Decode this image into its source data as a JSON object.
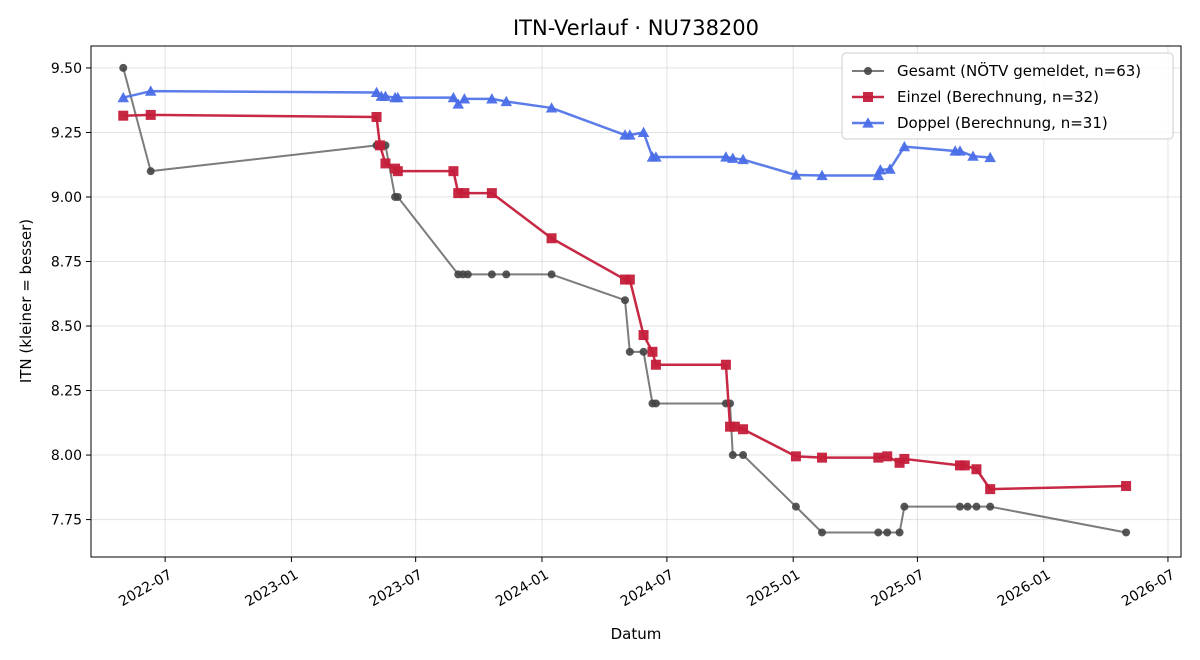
{
  "chart_data": {
    "type": "line",
    "title": "ITN-Verlauf · NU738200",
    "xlabel": "Datum",
    "ylabel": "ITN  (kleiner = besser)",
    "x_type": "date",
    "xlim": [
      "2022-03-15",
      "2026-07-20"
    ],
    "ylim": [
      7.605,
      9.585
    ],
    "x_ticks": [
      "2022-07-01",
      "2023-01-01",
      "2023-07-01",
      "2024-01-01",
      "2024-07-01",
      "2025-01-01",
      "2025-07-01",
      "2026-01-01",
      "2026-07-01"
    ],
    "x_tick_labels": [
      "2022-07",
      "2023-01",
      "2023-07",
      "2024-01",
      "2024-07",
      "2025-01",
      "2025-07",
      "2026-01",
      "2026-07"
    ],
    "y_ticks": [
      7.75,
      8.0,
      8.25,
      8.5,
      8.75,
      9.0,
      9.25,
      9.5
    ],
    "y_tick_labels": [
      "7.75",
      "8.00",
      "8.25",
      "8.50",
      "8.75",
      "9.00",
      "9.25",
      "9.50"
    ],
    "grid": true,
    "legend_position": "top-right",
    "series": [
      {
        "name": "Gesamt (NÖTV gemeldet, n=63)",
        "color": "#444444",
        "marker": "circle",
        "points": [
          [
            "2022-05-01",
            9.5
          ],
          [
            "2022-06-10",
            9.1
          ],
          [
            "2023-05-05",
            9.2
          ],
          [
            "2023-05-10",
            9.2
          ],
          [
            "2023-05-18",
            9.2
          ],
          [
            "2023-06-01",
            9.0
          ],
          [
            "2023-06-05",
            9.0
          ],
          [
            "2023-09-01",
            8.7
          ],
          [
            "2023-09-08",
            8.7
          ],
          [
            "2023-09-15",
            8.7
          ],
          [
            "2023-10-20",
            8.7
          ],
          [
            "2023-11-10",
            8.7
          ],
          [
            "2024-01-15",
            8.7
          ],
          [
            "2024-05-01",
            8.6
          ],
          [
            "2024-05-08",
            8.4
          ],
          [
            "2024-05-28",
            8.4
          ],
          [
            "2024-06-10",
            8.2
          ],
          [
            "2024-06-15",
            8.2
          ],
          [
            "2024-09-25",
            8.2
          ],
          [
            "2024-10-01",
            8.2
          ],
          [
            "2024-10-05",
            8.0
          ],
          [
            "2024-10-20",
            8.0
          ],
          [
            "2025-01-05",
            7.8
          ],
          [
            "2025-02-12",
            7.7
          ],
          [
            "2025-05-05",
            7.7
          ],
          [
            "2025-05-18",
            7.7
          ],
          [
            "2025-06-05",
            7.7
          ],
          [
            "2025-06-12",
            7.8
          ],
          [
            "2025-09-01",
            7.8
          ],
          [
            "2025-09-12",
            7.8
          ],
          [
            "2025-09-25",
            7.8
          ],
          [
            "2025-10-15",
            7.8
          ],
          [
            "2026-05-01",
            7.7
          ]
        ]
      },
      {
        "name": "Einzel (Berechnung, n=32)",
        "color": "#c41e3a",
        "marker": "square",
        "points": [
          [
            "2022-05-01",
            9.315
          ],
          [
            "2022-06-10",
            9.318
          ],
          [
            "2023-05-05",
            9.31
          ],
          [
            "2023-05-10",
            9.2
          ],
          [
            "2023-05-18",
            9.13
          ],
          [
            "2023-06-01",
            9.11
          ],
          [
            "2023-06-05",
            9.1
          ],
          [
            "2023-08-25",
            9.1
          ],
          [
            "2023-09-01",
            9.015
          ],
          [
            "2023-09-10",
            9.015
          ],
          [
            "2023-10-20",
            9.015
          ],
          [
            "2024-01-15",
            8.84
          ],
          [
            "2024-05-01",
            8.68
          ],
          [
            "2024-05-08",
            8.68
          ],
          [
            "2024-05-28",
            8.465
          ],
          [
            "2024-06-10",
            8.4
          ],
          [
            "2024-06-15",
            8.35
          ],
          [
            "2024-09-25",
            8.35
          ],
          [
            "2024-10-01",
            8.11
          ],
          [
            "2024-10-08",
            8.11
          ],
          [
            "2024-10-20",
            8.1
          ],
          [
            "2025-01-05",
            7.995
          ],
          [
            "2025-02-12",
            7.99
          ],
          [
            "2025-05-05",
            7.99
          ],
          [
            "2025-05-18",
            7.995
          ],
          [
            "2025-06-05",
            7.97
          ],
          [
            "2025-06-12",
            7.985
          ],
          [
            "2025-09-01",
            7.96
          ],
          [
            "2025-09-08",
            7.96
          ],
          [
            "2025-09-25",
            7.945
          ],
          [
            "2025-10-15",
            7.868
          ],
          [
            "2026-05-01",
            7.88
          ]
        ]
      },
      {
        "name": "Doppel (Berechnung, n=31)",
        "color": "#4a6ee8",
        "marker": "triangle",
        "points": [
          [
            "2022-05-01",
            9.385
          ],
          [
            "2022-06-10",
            9.41
          ],
          [
            "2023-05-05",
            9.405
          ],
          [
            "2023-05-12",
            9.39
          ],
          [
            "2023-05-18",
            9.39
          ],
          [
            "2023-06-01",
            9.385
          ],
          [
            "2023-06-05",
            9.385
          ],
          [
            "2023-08-25",
            9.385
          ],
          [
            "2023-09-01",
            9.36
          ],
          [
            "2023-09-10",
            9.38
          ],
          [
            "2023-10-20",
            9.38
          ],
          [
            "2023-11-10",
            9.37
          ],
          [
            "2024-01-15",
            9.345
          ],
          [
            "2024-05-01",
            9.24
          ],
          [
            "2024-05-08",
            9.24
          ],
          [
            "2024-05-28",
            9.25
          ],
          [
            "2024-06-10",
            9.155
          ],
          [
            "2024-06-15",
            9.155
          ],
          [
            "2024-09-25",
            9.155
          ],
          [
            "2024-10-05",
            9.15
          ],
          [
            "2024-10-20",
            9.145
          ],
          [
            "2025-01-05",
            9.085
          ],
          [
            "2025-02-12",
            9.083
          ],
          [
            "2025-05-05",
            9.083
          ],
          [
            "2025-05-08",
            9.105
          ],
          [
            "2025-05-22",
            9.108
          ],
          [
            "2025-06-12",
            9.195
          ],
          [
            "2025-08-25",
            9.178
          ],
          [
            "2025-09-01",
            9.178
          ],
          [
            "2025-09-20",
            9.158
          ],
          [
            "2025-10-15",
            9.153
          ]
        ]
      }
    ]
  }
}
